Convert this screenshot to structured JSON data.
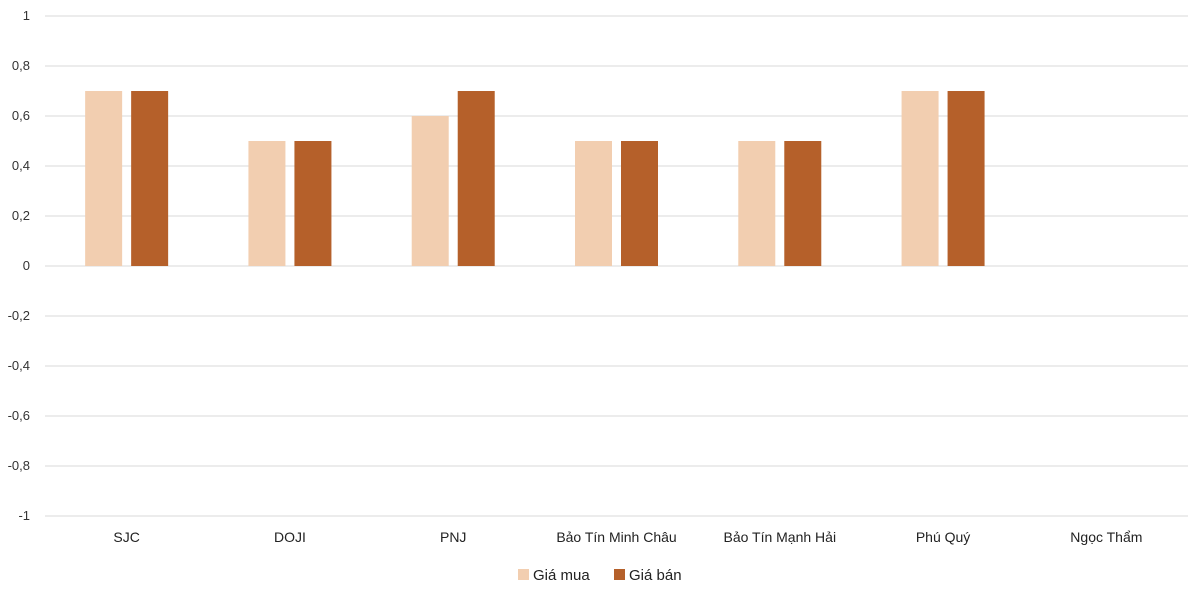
{
  "chart_data": {
    "type": "bar",
    "title": "",
    "xlabel": "",
    "ylabel": "",
    "categories": [
      "SJC",
      "DOJI",
      "PNJ",
      "Bảo Tín Minh Châu",
      "Bảo Tín Mạnh Hải",
      "Phú Quý",
      "Ngọc Thẩm"
    ],
    "series": [
      {
        "name": "Giá mua",
        "color": "#F2CEB0",
        "values": [
          0.7,
          0.5,
          0.6,
          0.5,
          0.5,
          0.7,
          0
        ]
      },
      {
        "name": "Giá bán",
        "color": "#B5602A",
        "values": [
          0.7,
          0.5,
          0.7,
          0.5,
          0.5,
          0.7,
          0
        ]
      }
    ],
    "ylim": [
      -1,
      1
    ],
    "yticks": [
      1,
      0.8,
      0.6,
      0.4,
      0.2,
      0,
      -0.2,
      -0.4,
      -0.6,
      -0.8,
      -1
    ],
    "ytick_labels": [
      "1",
      "0,8",
      "0,6",
      "0,4",
      "0,2",
      "0",
      "-0,2",
      "-0,4",
      "-0,6",
      "-0,8",
      "-1"
    ],
    "grid": true,
    "legend_position": "bottom-center"
  }
}
